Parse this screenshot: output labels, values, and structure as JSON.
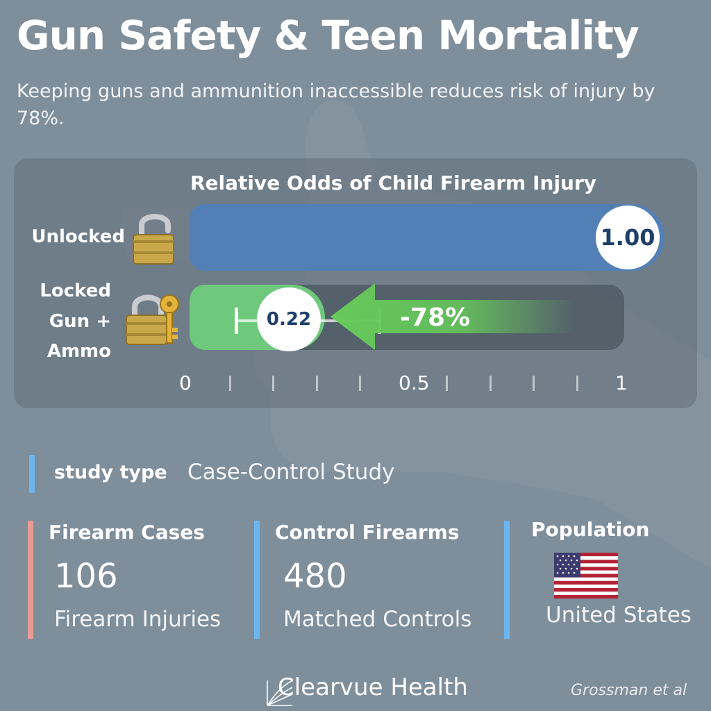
{
  "header": {
    "title": "Gun Safety & Teen Mortality",
    "subtitle": "Keeping guns and ammunition inaccessible reduces risk of injury by 78%."
  },
  "chart_data": {
    "type": "bar",
    "orientation": "horizontal",
    "title": "Relative Odds of Child Firearm Injury",
    "categories": [
      "Unlocked",
      "Locked Gun + Ammo"
    ],
    "values": [
      1.0,
      0.22
    ],
    "value_labels": [
      "1.00",
      "0.22"
    ],
    "error_bar_low": 0.15,
    "change_label": "-78%",
    "xlim": [
      0,
      1
    ],
    "tick_labels": [
      "0",
      "0.5",
      "1"
    ],
    "minor_ticks": [
      0.1,
      0.2,
      0.3,
      0.4,
      0.6,
      0.7,
      0.8,
      0.9
    ],
    "colors": {
      "unlocked": "#5280b6",
      "locked": "#6fc97c",
      "arrow": "#66c95a"
    },
    "icons": [
      "open-padlock-icon",
      "padlock-with-key-icon"
    ]
  },
  "study": {
    "label": "study type",
    "value": "Case-Control Study"
  },
  "stats": [
    {
      "heading": "Firearm Cases",
      "number": "106",
      "caption": "Firearm Injuries",
      "color": "#e89a93"
    },
    {
      "heading": "Control Firearms",
      "number": "480",
      "caption": "Matched Controls",
      "color": "#6cb5ef"
    },
    {
      "heading": "Population",
      "caption": "United States",
      "color": "#6cb5ef",
      "icon": "us-flag-icon"
    }
  ],
  "footer": {
    "brand": "Clearvue Health",
    "citation": "Grossman et al"
  }
}
